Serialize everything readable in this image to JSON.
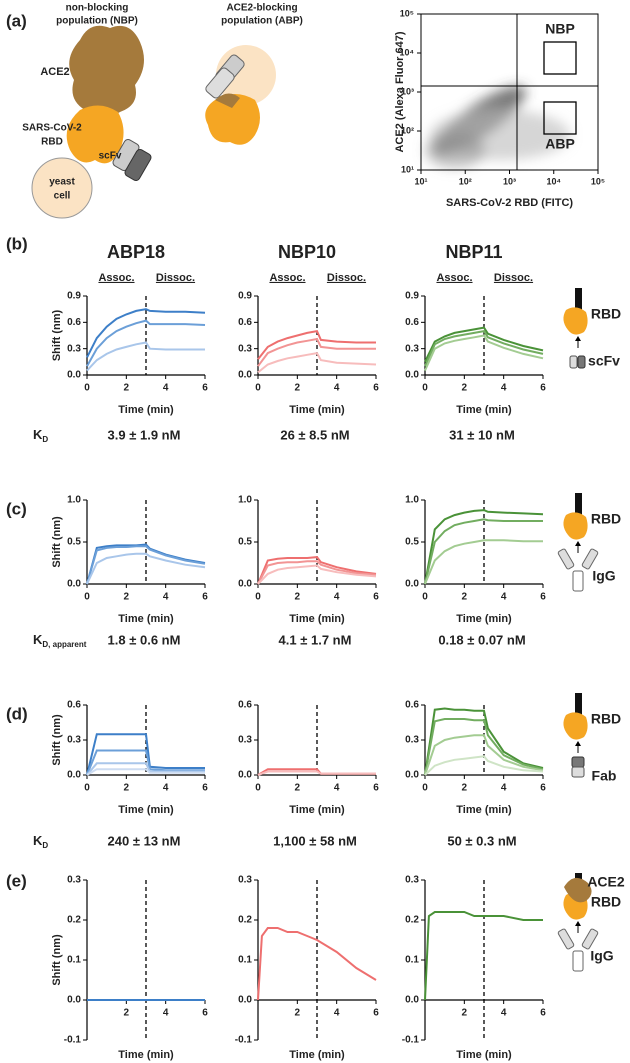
{
  "figure": {
    "panel_labels": [
      "(a)",
      "(b)",
      "(c)",
      "(d)",
      "(e)"
    ],
    "diagram": {
      "nbp_title": [
        "non-blocking",
        "population (NBP)"
      ],
      "abp_title": [
        "ACE2-blocking",
        "population (ABP)"
      ],
      "ace2": "ACE2",
      "rbd": [
        "SARS-CoV-2",
        "RBD"
      ],
      "scfv": "scFv",
      "yeast": [
        "yeast",
        "cell"
      ]
    },
    "columns": [
      "ABP18",
      "NBP10",
      "NBP11"
    ],
    "column_colors": [
      "#4a8fd4",
      "#f07c7c",
      "#4e9a3c"
    ],
    "phases": [
      "Assoc.",
      "Dissoc."
    ],
    "affinity": [
      {
        "symbol": "K",
        "subscript": "D",
        "values": [
          "3.9 ± 1.9 nM",
          "26 ± 8.5 nM",
          "31 ± 10 nM"
        ]
      },
      {
        "symbol": "K",
        "subscript": "D, apparent",
        "values": [
          "1.8 ± 0.6 nM",
          "4.1 ± 1.7 nM",
          "0.18 ± 0.07 nM"
        ]
      },
      {
        "symbol": "K",
        "subscript": "D",
        "values": [
          "240 ± 13 nM",
          "1,100 ± 58 nM",
          "50 ± 0.3 nM"
        ]
      }
    ],
    "icons": [
      {
        "labels": [
          "RBD",
          "scFv"
        ]
      },
      {
        "labels": [
          "RBD",
          "IgG"
        ]
      },
      {
        "labels": [
          "RBD",
          "Fab"
        ]
      },
      {
        "labels": [
          "ACE2",
          "RBD",
          "IgG"
        ]
      }
    ]
  },
  "chart_data": [
    {
      "type": "density",
      "xlabel": "SARS-CoV-2 RBD (FITC)",
      "ylabel": "ACE2 (Alexa Fluor 647)",
      "log_x": true,
      "log_y": true,
      "xlim": [
        10,
        100000
      ],
      "ylim": [
        10,
        100000
      ],
      "xticks": [
        {
          "value": 10,
          "label": "10¹"
        },
        {
          "value": 100,
          "label": "10²"
        },
        {
          "value": 1000,
          "label": "10³"
        },
        {
          "value": 10000,
          "label": "10⁴"
        },
        {
          "value": 100000,
          "label": "10⁵"
        }
      ],
      "yticks": [
        {
          "value": 10,
          "label": "10¹"
        },
        {
          "value": 100,
          "label": "10²"
        },
        {
          "value": 1000,
          "label": "10³"
        },
        {
          "value": 10000,
          "label": "10⁴"
        },
        {
          "value": 100000,
          "label": "10⁵"
        }
      ],
      "gates": [
        "NBP",
        "ABP"
      ]
    },
    {
      "type": "line",
      "ylabel": "Shift (nm)",
      "xlabel": "Time (min)",
      "xlim": [
        0,
        6
      ],
      "xticks": [
        0,
        2,
        4,
        6
      ],
      "ylim": [
        0,
        0.9
      ],
      "yticks": [
        {
          "value": 0,
          "label": "0.0"
        },
        0.3,
        0.6,
        0.9
      ],
      "vline": 3,
      "x": [
        0,
        0.5,
        1,
        1.5,
        2,
        2.5,
        3,
        3.2,
        4,
        5,
        6
      ],
      "series": [
        {
          "color": "#3d7fc8",
          "values": [
            0.2,
            0.42,
            0.55,
            0.64,
            0.69,
            0.73,
            0.75,
            0.73,
            0.72,
            0.72,
            0.71
          ]
        },
        {
          "color": "#6b9fd8",
          "values": [
            0.1,
            0.3,
            0.42,
            0.5,
            0.55,
            0.59,
            0.62,
            0.58,
            0.58,
            0.58,
            0.57
          ]
        },
        {
          "color": "#a9c6ea",
          "values": [
            0.05,
            0.17,
            0.24,
            0.29,
            0.32,
            0.35,
            0.37,
            0.3,
            0.29,
            0.29,
            0.29
          ]
        }
      ]
    },
    {
      "type": "line",
      "xlabel": "Time (min)",
      "xlim": [
        0,
        6
      ],
      "xticks": [
        0,
        2,
        4,
        6
      ],
      "ylim": [
        0,
        0.9
      ],
      "yticks": [
        {
          "value": 0,
          "label": "0.0"
        },
        0.3,
        0.6,
        0.9
      ],
      "vline": 3,
      "x": [
        0,
        0.5,
        1,
        1.5,
        2,
        2.5,
        3,
        3.2,
        4,
        5,
        6
      ],
      "series": [
        {
          "color": "#ee6f6f",
          "values": [
            0.18,
            0.32,
            0.38,
            0.42,
            0.45,
            0.48,
            0.5,
            0.4,
            0.38,
            0.37,
            0.37
          ]
        },
        {
          "color": "#f29494",
          "values": [
            0.1,
            0.25,
            0.3,
            0.34,
            0.37,
            0.39,
            0.41,
            0.32,
            0.3,
            0.3,
            0.3
          ]
        },
        {
          "color": "#f7bcbc",
          "values": [
            0.03,
            0.12,
            0.16,
            0.19,
            0.21,
            0.23,
            0.25,
            0.17,
            0.14,
            0.13,
            0.12
          ]
        }
      ]
    },
    {
      "type": "line",
      "xlabel": "Time (min)",
      "xlim": [
        0,
        6
      ],
      "xticks": [
        0,
        2,
        4,
        6
      ],
      "ylim": [
        0,
        0.9
      ],
      "yticks": [
        {
          "value": 0,
          "label": "0.0"
        },
        0.3,
        0.6,
        0.9
      ],
      "vline": 3,
      "x": [
        0,
        0.5,
        1,
        1.5,
        2,
        2.5,
        3,
        3.2,
        4,
        5,
        6
      ],
      "series": [
        {
          "color": "#4a9238",
          "values": [
            0.15,
            0.38,
            0.44,
            0.48,
            0.5,
            0.52,
            0.54,
            0.47,
            0.4,
            0.33,
            0.28
          ]
        },
        {
          "color": "#72ad60",
          "values": [
            0.1,
            0.35,
            0.41,
            0.44,
            0.46,
            0.48,
            0.5,
            0.43,
            0.36,
            0.29,
            0.24
          ]
        },
        {
          "color": "#a3cc92",
          "values": [
            0.05,
            0.3,
            0.36,
            0.39,
            0.41,
            0.43,
            0.45,
            0.38,
            0.31,
            0.24,
            0.19
          ]
        }
      ]
    },
    {
      "type": "line",
      "ylabel": "Shift (nm)",
      "xlabel": "Time (min)",
      "xlim": [
        0,
        6
      ],
      "xticks": [
        0,
        2,
        4,
        6
      ],
      "ylim": [
        0,
        1
      ],
      "yticks": [
        {
          "value": 0,
          "label": "0.0"
        },
        0.5,
        {
          "value": 1,
          "label": "1.0"
        }
      ],
      "vline": 3,
      "x": [
        0,
        0.5,
        1,
        1.5,
        2,
        2.5,
        3,
        3.2,
        4,
        5,
        6
      ],
      "series": [
        {
          "color": "#3d7fc8",
          "values": [
            0,
            0.43,
            0.45,
            0.46,
            0.46,
            0.46,
            0.47,
            0.42,
            0.35,
            0.29,
            0.25
          ]
        },
        {
          "color": "#6b9fd8",
          "values": [
            0,
            0.4,
            0.43,
            0.44,
            0.44,
            0.45,
            0.45,
            0.41,
            0.34,
            0.28,
            0.24
          ]
        },
        {
          "color": "#a9c6ea",
          "values": [
            0,
            0.25,
            0.31,
            0.33,
            0.35,
            0.36,
            0.36,
            0.33,
            0.28,
            0.23,
            0.2
          ]
        }
      ]
    },
    {
      "type": "line",
      "xlabel": "Time (min)",
      "xlim": [
        0,
        6
      ],
      "xticks": [
        0,
        2,
        4,
        6
      ],
      "ylim": [
        0,
        1
      ],
      "yticks": [
        {
          "value": 0,
          "label": "0.0"
        },
        0.5,
        {
          "value": 1,
          "label": "1.0"
        }
      ],
      "vline": 3,
      "x": [
        0,
        0.5,
        1,
        1.5,
        2,
        2.5,
        3,
        3.2,
        4,
        5,
        6
      ],
      "series": [
        {
          "color": "#ee6f6f",
          "values": [
            0,
            0.28,
            0.3,
            0.31,
            0.31,
            0.31,
            0.32,
            0.26,
            0.2,
            0.15,
            0.12
          ]
        },
        {
          "color": "#f29494",
          "values": [
            0,
            0.22,
            0.25,
            0.26,
            0.26,
            0.27,
            0.27,
            0.23,
            0.17,
            0.13,
            0.11
          ]
        },
        {
          "color": "#f7bcbc",
          "values": [
            0,
            0.12,
            0.17,
            0.19,
            0.2,
            0.21,
            0.22,
            0.18,
            0.14,
            0.11,
            0.09
          ]
        }
      ]
    },
    {
      "type": "line",
      "xlabel": "Time (min)",
      "xlim": [
        0,
        6
      ],
      "xticks": [
        0,
        2,
        4,
        6
      ],
      "ylim": [
        0,
        1
      ],
      "yticks": [
        {
          "value": 0,
          "label": "0.0"
        },
        0.5,
        {
          "value": 1,
          "label": "1.0"
        }
      ],
      "vline": 3,
      "x": [
        0,
        0.5,
        1,
        1.5,
        2,
        2.5,
        3,
        3.2,
        4,
        5,
        6
      ],
      "series": [
        {
          "color": "#4a9238",
          "values": [
            0,
            0.65,
            0.77,
            0.82,
            0.85,
            0.87,
            0.88,
            0.86,
            0.85,
            0.84,
            0.83
          ]
        },
        {
          "color": "#72ad60",
          "values": [
            0,
            0.5,
            0.63,
            0.7,
            0.73,
            0.75,
            0.77,
            0.76,
            0.75,
            0.75,
            0.75
          ]
        },
        {
          "color": "#a3cc92",
          "values": [
            0,
            0.28,
            0.39,
            0.45,
            0.48,
            0.5,
            0.52,
            0.52,
            0.52,
            0.51,
            0.51
          ]
        }
      ]
    },
    {
      "type": "line",
      "ylabel": "Shift (nm)",
      "xlabel": "Time (min)",
      "xlim": [
        0,
        6
      ],
      "xticks": [
        0,
        2,
        4,
        6
      ],
      "ylim": [
        0,
        0.6
      ],
      "yticks": [
        {
          "value": 0,
          "label": "0.0"
        },
        0.3,
        0.6
      ],
      "vline": 3,
      "x": [
        0,
        0.5,
        1,
        1.5,
        2,
        2.5,
        3,
        3.2,
        4,
        5,
        6
      ],
      "series": [
        {
          "color": "#3d7fc8",
          "values": [
            0,
            0.35,
            0.35,
            0.35,
            0.35,
            0.35,
            0.35,
            0.07,
            0.06,
            0.06,
            0.06
          ]
        },
        {
          "color": "#6b9fd8",
          "values": [
            0,
            0.21,
            0.21,
            0.21,
            0.21,
            0.21,
            0.21,
            0.05,
            0.04,
            0.04,
            0.04
          ]
        },
        {
          "color": "#a9c6ea",
          "values": [
            0,
            0.1,
            0.1,
            0.1,
            0.1,
            0.1,
            0.1,
            0.03,
            0.03,
            0.03,
            0.03
          ]
        },
        {
          "color": "#cddcf1",
          "values": [
            0,
            0.05,
            0.05,
            0.05,
            0.05,
            0.05,
            0.05,
            0.02,
            0.02,
            0.02,
            0.02
          ]
        }
      ]
    },
    {
      "type": "line",
      "xlabel": "Time (min)",
      "xlim": [
        0,
        6
      ],
      "xticks": [
        0,
        2,
        4,
        6
      ],
      "ylim": [
        0,
        0.6
      ],
      "yticks": [
        {
          "value": 0,
          "label": "0.0"
        },
        0.3,
        0.6
      ],
      "vline": 3,
      "x": [
        0,
        0.5,
        1,
        1.5,
        2,
        2.5,
        3,
        3.2,
        4,
        5,
        6
      ],
      "series": [
        {
          "color": "#ee6f6f",
          "values": [
            0,
            0.05,
            0.05,
            0.05,
            0.05,
            0.05,
            0.05,
            0.01,
            0.01,
            0.01,
            0.01
          ]
        },
        {
          "color": "#f7bcbc",
          "values": [
            0,
            0.03,
            0.03,
            0.03,
            0.03,
            0.03,
            0.03,
            0.01,
            0.01,
            0.01,
            0.01
          ]
        }
      ]
    },
    {
      "type": "line",
      "xlabel": "Time (min)",
      "xlim": [
        0,
        6
      ],
      "xticks": [
        0,
        2,
        4,
        6
      ],
      "ylim": [
        0,
        0.6
      ],
      "yticks": [
        {
          "value": 0,
          "label": "0.0"
        },
        0.3,
        0.6
      ],
      "vline": 3,
      "x": [
        0,
        0.5,
        1,
        1.5,
        2,
        2.5,
        3,
        3.2,
        4,
        5,
        6
      ],
      "series": [
        {
          "color": "#4a9238",
          "values": [
            0,
            0.56,
            0.57,
            0.56,
            0.56,
            0.55,
            0.55,
            0.4,
            0.2,
            0.1,
            0.06
          ]
        },
        {
          "color": "#72ad60",
          "values": [
            0,
            0.46,
            0.48,
            0.48,
            0.48,
            0.47,
            0.47,
            0.34,
            0.17,
            0.09,
            0.05
          ]
        },
        {
          "color": "#a3cc92",
          "values": [
            0,
            0.25,
            0.3,
            0.32,
            0.33,
            0.34,
            0.34,
            0.25,
            0.13,
            0.07,
            0.04
          ]
        },
        {
          "color": "#cfe4c6",
          "values": [
            0,
            0.08,
            0.11,
            0.13,
            0.14,
            0.15,
            0.16,
            0.12,
            0.07,
            0.04,
            0.03
          ]
        }
      ]
    },
    {
      "type": "line",
      "ylabel": "Shift (nm)",
      "xlabel": "Time (min)",
      "xlim": [
        0,
        6
      ],
      "xticks": [
        2,
        4,
        6
      ],
      "ylim": [
        -0.1,
        0.3
      ],
      "yticks": [
        -0.1,
        {
          "value": 0,
          "label": "0.0"
        },
        0.1,
        0.2,
        0.3
      ],
      "vline": 3,
      "x": [
        0,
        0.5,
        1,
        1.5,
        2,
        2.5,
        3,
        3.2,
        4,
        5,
        6
      ],
      "series": [
        {
          "color": "#3d7fc8",
          "values": [
            0,
            0,
            0,
            0,
            0,
            0,
            0,
            0,
            0,
            0,
            0
          ]
        }
      ]
    },
    {
      "type": "line",
      "xlabel": "Time (min)",
      "xlim": [
        0,
        6
      ],
      "xticks": [
        2,
        4,
        6
      ],
      "ylim": [
        -0.1,
        0.3
      ],
      "yticks": [
        -0.1,
        {
          "value": 0,
          "label": "0.0"
        },
        0.1,
        0.2,
        0.3
      ],
      "vline": 3,
      "x": [
        0,
        0.2,
        0.5,
        1,
        1.5,
        2,
        2.5,
        3,
        4,
        5,
        6
      ],
      "series": [
        {
          "color": "#ee6f6f",
          "values": [
            0,
            0.16,
            0.18,
            0.18,
            0.17,
            0.17,
            0.16,
            0.15,
            0.12,
            0.08,
            0.05
          ]
        }
      ]
    },
    {
      "type": "line",
      "xlabel": "Time (min)",
      "xlim": [
        0,
        6
      ],
      "xticks": [
        2,
        4,
        6
      ],
      "ylim": [
        -0.1,
        0.3
      ],
      "yticks": [
        -0.1,
        {
          "value": 0,
          "label": "0.0"
        },
        0.1,
        0.2,
        0.3
      ],
      "vline": 3,
      "x": [
        0,
        0.2,
        0.5,
        1,
        1.5,
        2,
        2.5,
        3,
        4,
        5,
        6
      ],
      "series": [
        {
          "color": "#4a9238",
          "values": [
            0,
            0.21,
            0.22,
            0.22,
            0.22,
            0.22,
            0.21,
            0.21,
            0.21,
            0.2,
            0.2
          ]
        }
      ]
    }
  ]
}
